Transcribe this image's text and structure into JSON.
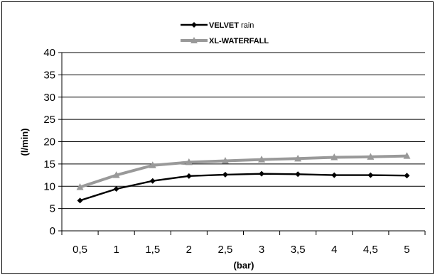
{
  "chart_data": {
    "type": "line",
    "x": [
      0.5,
      1,
      1.5,
      2,
      2.5,
      3,
      3.5,
      4,
      4.5,
      5
    ],
    "x_tick_labels": [
      "0,5",
      "1",
      "1,5",
      "2",
      "2,5",
      "3",
      "3,5",
      "4",
      "4,5",
      "5"
    ],
    "xlabel": "(bar)",
    "ylabel": "(l/min)",
    "ylim": [
      0,
      40
    ],
    "y_ticks": [
      0,
      5,
      10,
      15,
      20,
      25,
      30,
      35,
      40
    ],
    "y_tick_labels": [
      "0",
      "5",
      "10",
      "15",
      "20",
      "25",
      "30",
      "35",
      "40"
    ],
    "grid": true,
    "legend_position": "top",
    "series": [
      {
        "name_bold": "VELVET",
        "name_rest": " rain",
        "color": "#000000",
        "marker": "diamond",
        "values": [
          6.8,
          9.4,
          11.2,
          12.3,
          12.6,
          12.8,
          12.7,
          12.5,
          12.5,
          12.4
        ]
      },
      {
        "name_bold": "XL-WATERFALL",
        "name_rest": "",
        "color": "#999999",
        "marker": "triangle",
        "values": [
          9.8,
          12.5,
          14.7,
          15.4,
          15.7,
          16.0,
          16.2,
          16.5,
          16.6,
          16.8
        ]
      }
    ]
  }
}
